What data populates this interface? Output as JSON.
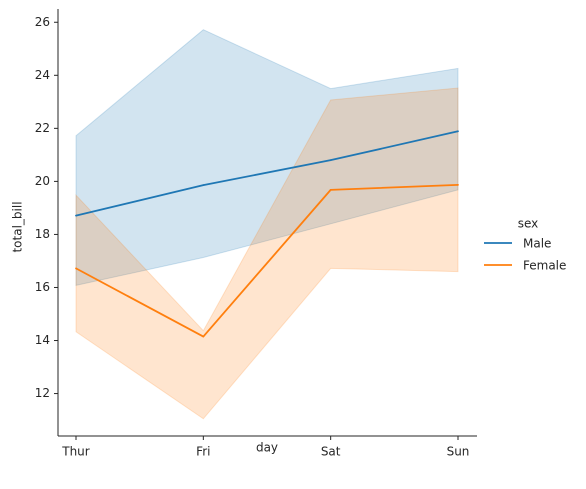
{
  "chart_data": {
    "type": "line",
    "xlabel": "day",
    "ylabel": "total_bill",
    "categories": [
      "Thur",
      "Fri",
      "Sat",
      "Sun"
    ],
    "ylim": [
      10.4,
      26.5
    ],
    "yticks": [
      12,
      14,
      16,
      18,
      20,
      22,
      24,
      26
    ],
    "legend": {
      "title": "sex",
      "placement": "right"
    },
    "series": [
      {
        "name": "Male",
        "color": "#1f77b4",
        "values": [
          18.71,
          19.86,
          20.8,
          21.89
        ],
        "ci_low": [
          16.08,
          17.13,
          18.4,
          19.68
        ],
        "ci_high": [
          21.72,
          25.72,
          23.5,
          24.26
        ]
      },
      {
        "name": "Female",
        "color": "#ff7f0e",
        "values": [
          16.72,
          14.15,
          19.68,
          19.87
        ],
        "ci_low": [
          14.33,
          11.05,
          16.72,
          16.6
        ],
        "ci_high": [
          19.48,
          14.37,
          23.07,
          23.52
        ]
      }
    ]
  }
}
